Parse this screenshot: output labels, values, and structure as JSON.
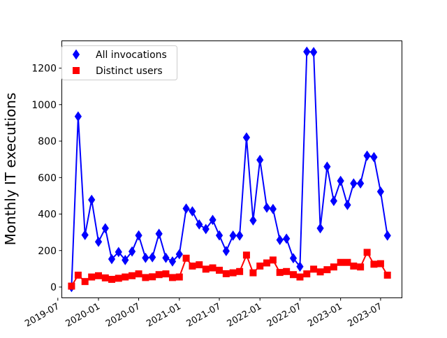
{
  "chart_data": {
    "type": "line",
    "title": "",
    "xlabel": "",
    "ylabel": "Monthly IT executions",
    "ylim": [
      -60,
      1330
    ],
    "yticks": [
      0,
      200,
      400,
      600,
      800,
      1000,
      1200
    ],
    "xticks": [
      "2019-07",
      "2020-01",
      "2020-07",
      "2021-01",
      "2021-07",
      "2022-01",
      "2022-07",
      "2023-01",
      "2023-07"
    ],
    "grid": false,
    "legend_position": "upper-left",
    "x": [
      "2019-09",
      "2019-10",
      "2019-11",
      "2019-12",
      "2020-01",
      "2020-02",
      "2020-03",
      "2020-04",
      "2020-05",
      "2020-06",
      "2020-07",
      "2020-08",
      "2020-09",
      "2020-10",
      "2020-11",
      "2020-12",
      "2021-01",
      "2021-02",
      "2021-03",
      "2021-04",
      "2021-05",
      "2021-06",
      "2021-07",
      "2021-08",
      "2021-09",
      "2021-10",
      "2021-11",
      "2021-12",
      "2022-01",
      "2022-02",
      "2022-03",
      "2022-04",
      "2022-05",
      "2022-06",
      "2022-07",
      "2022-08",
      "2022-09",
      "2022-10",
      "2022-11",
      "2022-12",
      "2023-01",
      "2023-02",
      "2023-03",
      "2023-04",
      "2023-05",
      "2023-06",
      "2023-07",
      "2023-08"
    ],
    "series": [
      {
        "name": "All invocations",
        "color": "#0000ff",
        "marker": "diamond",
        "values": [
          0,
          935,
          285,
          478,
          248,
          322,
          153,
          192,
          148,
          195,
          283,
          160,
          163,
          292,
          160,
          140,
          180,
          430,
          415,
          343,
          318,
          368,
          283,
          197,
          282,
          282,
          820,
          365,
          697,
          435,
          428,
          258,
          265,
          158,
          112,
          1290,
          1288,
          322,
          660,
          472,
          582,
          450,
          568,
          568,
          720,
          712,
          523,
          282
        ]
      },
      {
        "name": "Distinct users",
        "color": "#ff0000",
        "marker": "square",
        "values": [
          5,
          65,
          30,
          55,
          62,
          50,
          42,
          48,
          55,
          62,
          72,
          52,
          56,
          68,
          72,
          52,
          55,
          158,
          115,
          122,
          98,
          105,
          92,
          73,
          78,
          85,
          175,
          78,
          115,
          132,
          148,
          80,
          85,
          68,
          55,
          72,
          98,
          83,
          95,
          110,
          135,
          135,
          115,
          110,
          190,
          125,
          128,
          65
        ]
      }
    ]
  }
}
